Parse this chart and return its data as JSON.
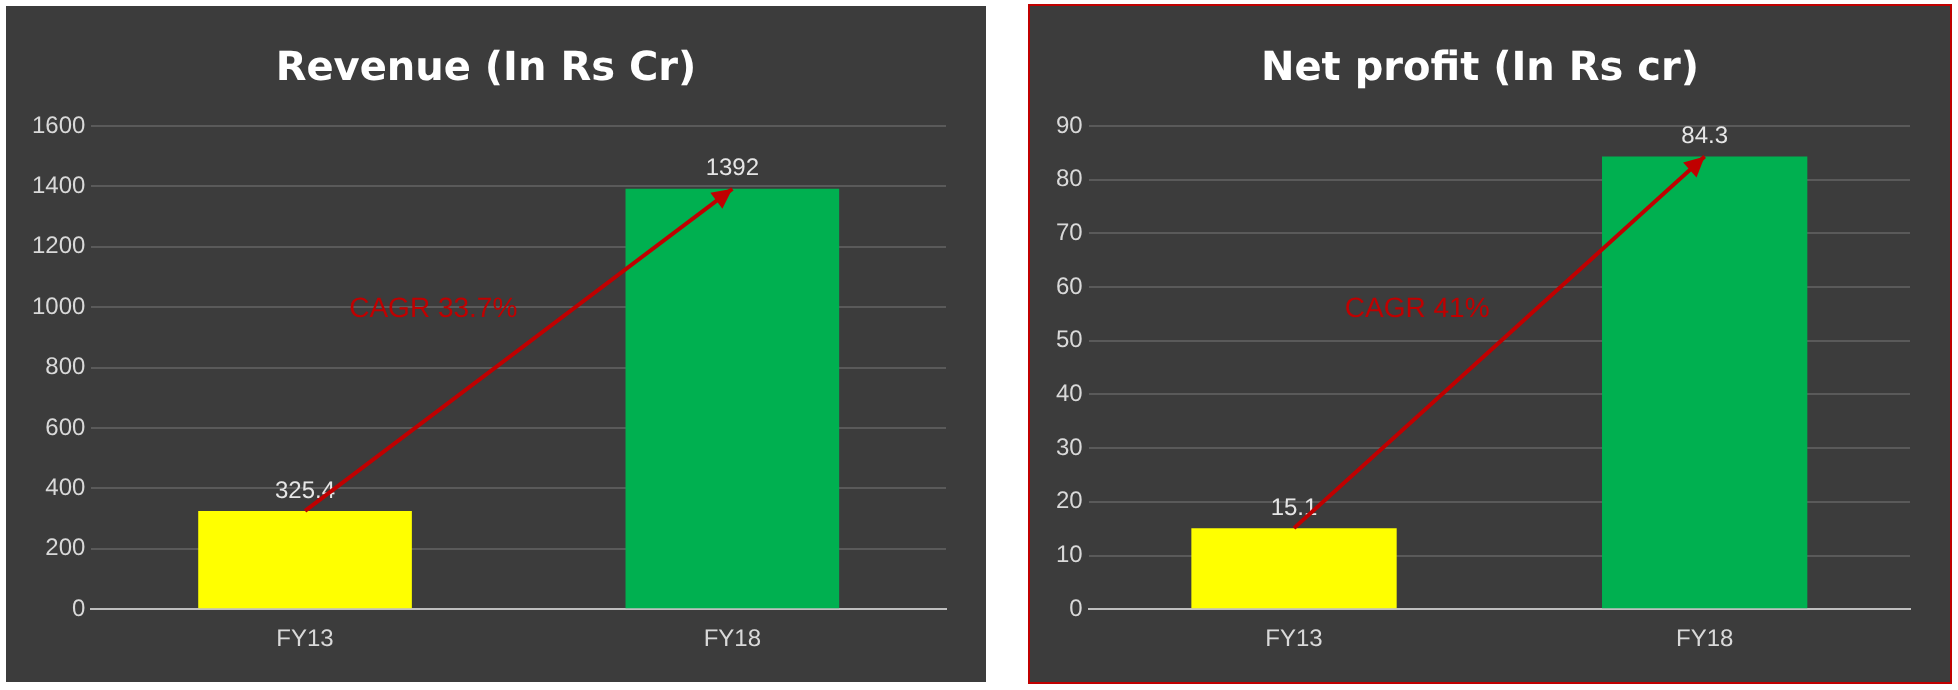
{
  "chart_data": [
    {
      "type": "bar",
      "title": "Revenue (In Rs Cr)",
      "categories": [
        "FY13",
        "FY18"
      ],
      "values": [
        325.4,
        1392
      ],
      "colors": [
        "#ffff00",
        "#00b050"
      ],
      "ylim": [
        0,
        1600
      ],
      "yticks": [
        0,
        200,
        400,
        600,
        800,
        1000,
        1200,
        1400,
        1600
      ],
      "grid": "y",
      "data_labels": true,
      "annotations": [
        "CAGR 33.7%"
      ]
    },
    {
      "type": "bar",
      "title": "Net profit (In Rs cr)",
      "categories": [
        "FY13",
        "FY18"
      ],
      "values": [
        15.1,
        84.3
      ],
      "colors": [
        "#ffff00",
        "#00b050"
      ],
      "ylim": [
        0,
        90
      ],
      "yticks": [
        0,
        10,
        20,
        30,
        40,
        50,
        60,
        70,
        80,
        90
      ],
      "grid": "y",
      "data_labels": true,
      "annotations": [
        "CAGR 41%"
      ]
    }
  ]
}
